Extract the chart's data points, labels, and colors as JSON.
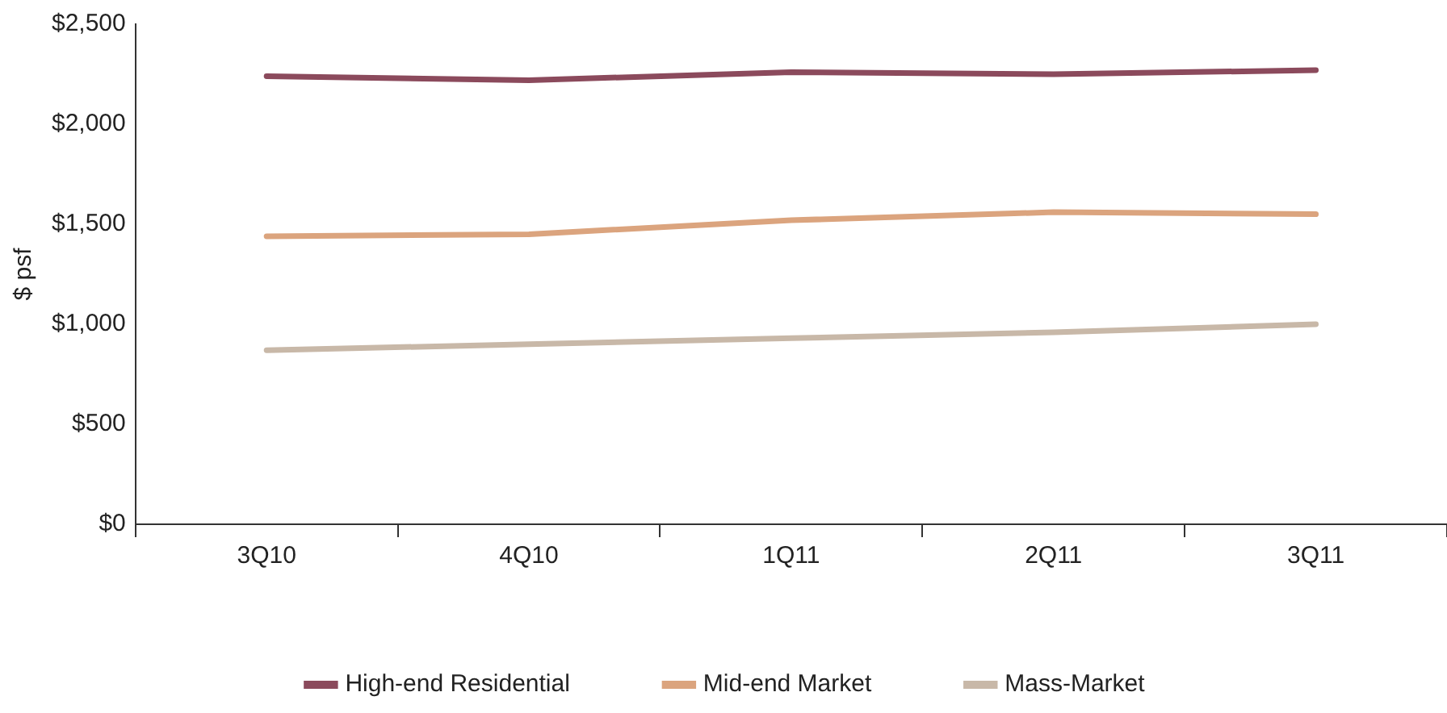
{
  "chart_data": {
    "type": "line",
    "ylabel": "$ psf",
    "categories": [
      "3Q10",
      "4Q10",
      "1Q11",
      "2Q11",
      "3Q11"
    ],
    "series": [
      {
        "name": "High-end Residential",
        "color": "#8b4a5c",
        "values": [
          2240,
          2220,
          2260,
          2250,
          2270
        ]
      },
      {
        "name": "Mid-end Market",
        "color": "#dba47e",
        "values": [
          1440,
          1450,
          1520,
          1560,
          1550
        ]
      },
      {
        "name": "Mass-Market",
        "color": "#c8b8a8",
        "values": [
          870,
          900,
          930,
          960,
          1000
        ]
      }
    ],
    "ylim": [
      0,
      2500
    ],
    "yticks": [
      {
        "value": 0,
        "label": "$0"
      },
      {
        "value": 500,
        "label": "$500"
      },
      {
        "value": 1000,
        "label": "$1,000"
      },
      {
        "value": 1500,
        "label": "$1,500"
      },
      {
        "value": 2000,
        "label": "$2,000"
      },
      {
        "value": 2500,
        "label": "$2,500"
      }
    ],
    "grid": false,
    "legend": "bottom",
    "marker": "none",
    "line_style": "solid"
  }
}
